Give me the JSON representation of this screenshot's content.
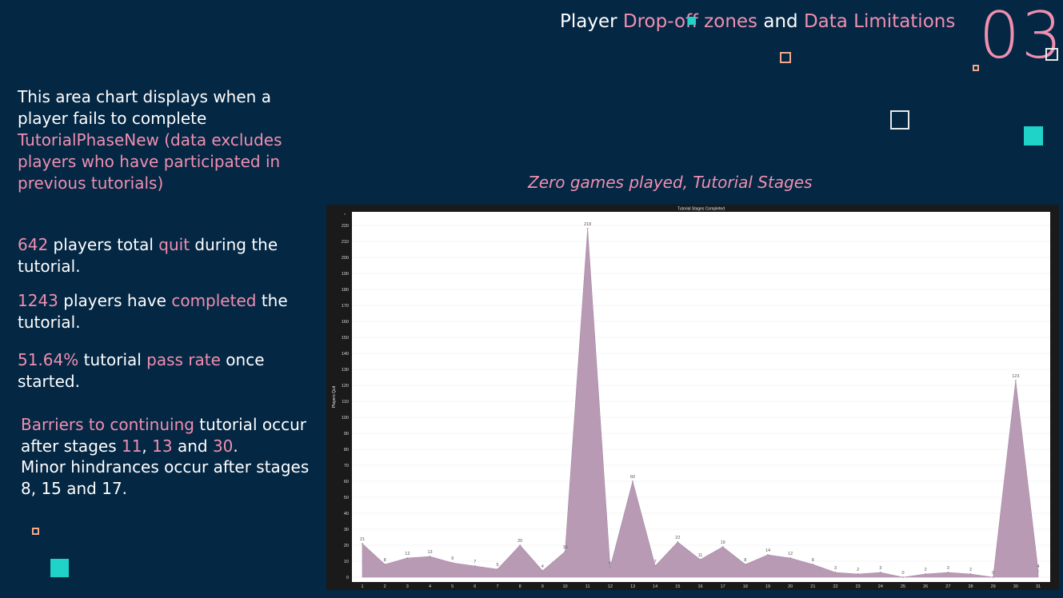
{
  "header": {
    "title_parts": [
      "Player ",
      "Drop-off zones",
      " and ",
      "Data Limitations"
    ],
    "slide_number": "03"
  },
  "intro": {
    "part1": "This area chart displays when a player fails to complete ",
    "part2": "TutorialPhaseNew (data excludes players who have participated in previous tutorials)"
  },
  "stats": {
    "quit": {
      "num": "642",
      "t1": " players total ",
      "hl": "quit",
      "t2": " during the tutorial."
    },
    "completed": {
      "num": "1243",
      "t1": " players have ",
      "hl": "completed",
      "t2": " the tutorial."
    },
    "pass": {
      "num": "51.64%",
      "t1": " tutorial ",
      "hl": "pass rate",
      "t2": " once started."
    }
  },
  "barriers": {
    "hl1": "Barriers to continuing",
    "t1": " tutorial occur after stages ",
    "s1": "11",
    "c1": ", ",
    "s2": "13",
    "c2": " and ",
    "s3": "30",
    "t2": ".",
    "line2": "Minor hindrances occur after stages 8, 15 and 17."
  },
  "chart_heading": "Zero games played, Tutorial Stages",
  "colors": {
    "background": "#042743",
    "accent_pink": "#f08fb0",
    "teal": "#1fd3c9",
    "peach": "#f4a98a",
    "area_fill": "#b89ab5"
  },
  "chart_data": {
    "type": "area",
    "title": "Tutorial Stages Completed",
    "xlabel": "",
    "ylabel": "Players Quit",
    "ylim": [
      0,
      220
    ],
    "y_ticks": [
      0,
      10,
      20,
      30,
      40,
      50,
      60,
      70,
      80,
      90,
      100,
      110,
      120,
      130,
      140,
      150,
      160,
      170,
      180,
      190,
      200,
      210,
      220
    ],
    "x": [
      1,
      2,
      3,
      4,
      5,
      6,
      7,
      8,
      9,
      10,
      11,
      12,
      13,
      14,
      15,
      16,
      17,
      18,
      19,
      20,
      21,
      22,
      23,
      24,
      25,
      26,
      27,
      28,
      29,
      30,
      31
    ],
    "values": [
      21,
      8,
      12,
      13,
      9,
      7,
      5,
      20,
      4,
      16,
      218,
      6,
      60,
      7,
      22,
      11,
      19,
      8,
      14,
      12,
      8,
      3,
      2,
      3,
      0,
      2,
      3,
      2,
      0,
      123,
      4
    ],
    "grid": true,
    "legend": "none"
  }
}
